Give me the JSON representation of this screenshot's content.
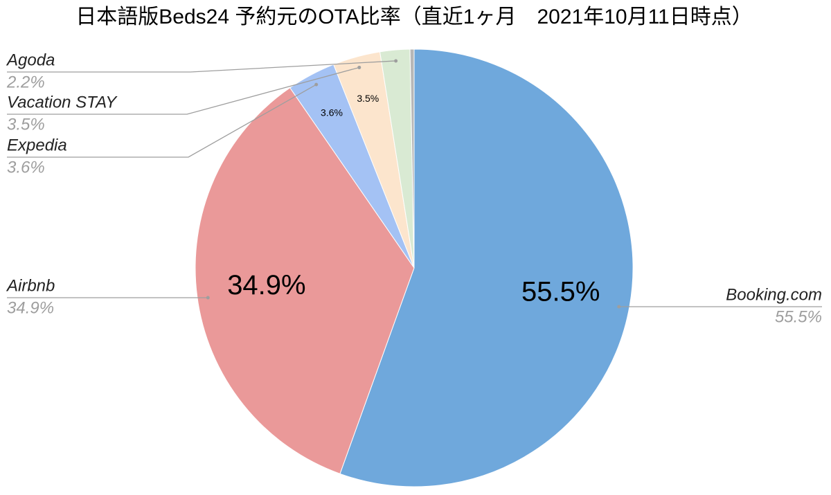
{
  "chart_data": {
    "type": "pie",
    "title": "日本語版Beds24 予約元のOTA比率（直近1ヶ月　2021年10月11日時点）",
    "categories": [
      "Booking.com",
      "Airbnb",
      "Expedia",
      "Vacation STAY",
      "Agoda",
      null
    ],
    "values": [
      55.5,
      34.9,
      3.6,
      3.5,
      2.2,
      0.3
    ],
    "value_labels": [
      "55.5%",
      "34.9%",
      "3.6%",
      "3.5%",
      "2.2%",
      null
    ],
    "colors": [
      "#6fa8dc",
      "#ea9999",
      "#a4c2f4",
      "#fce5cd",
      "#d9ead3",
      "#b7b7b7"
    ]
  }
}
